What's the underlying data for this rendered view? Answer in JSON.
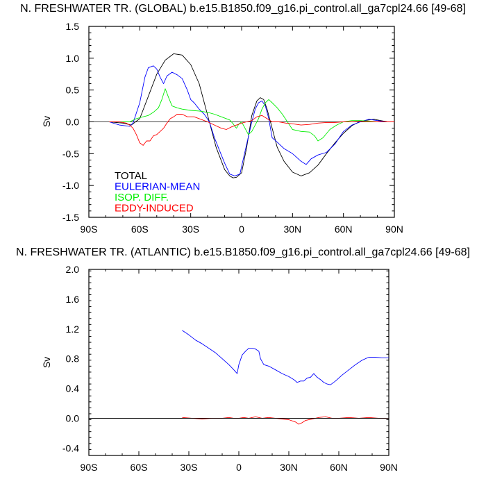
{
  "chart_data": [
    {
      "type": "line",
      "title": "N. FRESHWATER TR. (GLOBAL) b.e15.B1850.f09_g16.pi_control.all_ga7cpl24.66 [49-68]",
      "xlabel": "",
      "ylabel": "Sv",
      "xlim": [
        -90,
        90
      ],
      "ylim": [
        -1.5,
        1.5
      ],
      "xticks": [
        -90,
        -60,
        -30,
        0,
        30,
        60,
        90
      ],
      "xtick_labels": [
        "90S",
        "60S",
        "30S",
        "0",
        "30N",
        "60N",
        "90N"
      ],
      "yticks": [
        -1.5,
        -1.0,
        -0.5,
        0.0,
        0.5,
        1.0,
        1.5
      ],
      "ytick_labels": [
        "-1.5",
        "-1.0",
        "-0.5",
        "0.0",
        "0.5",
        "1.0",
        "1.5"
      ],
      "zero_line": true,
      "grid": false,
      "legend_position": "lower-left",
      "series": [
        {
          "name": "TOTAL",
          "color": "#000000",
          "x": [
            -78,
            -70,
            -65,
            -60,
            -55,
            -50,
            -45,
            -40,
            -35,
            -30,
            -25,
            -20,
            -15,
            -10,
            -7,
            -5,
            -3,
            0,
            3,
            6,
            9,
            11,
            13,
            15,
            18,
            21,
            25,
            30,
            35,
            40,
            45,
            50,
            55,
            60,
            65,
            70,
            75,
            78,
            82,
            86,
            90
          ],
          "y": [
            0.0,
            -0.02,
            -0.05,
            0.05,
            0.4,
            0.75,
            0.97,
            1.07,
            1.05,
            0.9,
            0.6,
            0.1,
            -0.4,
            -0.75,
            -0.85,
            -0.88,
            -0.87,
            -0.8,
            -0.4,
            0.1,
            0.33,
            0.38,
            0.35,
            0.2,
            -0.1,
            -0.4,
            -0.62,
            -0.79,
            -0.85,
            -0.8,
            -0.68,
            -0.5,
            -0.33,
            -0.18,
            -0.06,
            0.01,
            0.03,
            0.04,
            0.02,
            0.0,
            0.0
          ]
        },
        {
          "name": "EULERIAN-MEAN",
          "color": "#0000ff",
          "x": [
            -78,
            -72,
            -66,
            -64,
            -60,
            -57,
            -55,
            -52,
            -50,
            -48,
            -46,
            -44,
            -41,
            -38,
            -35,
            -32,
            -30,
            -28,
            -25,
            -22,
            -19,
            -16,
            -13,
            -10,
            -7,
            -4,
            -1,
            0,
            3,
            6,
            8,
            10,
            12,
            14,
            16,
            18,
            21,
            25,
            30,
            35,
            38,
            41,
            45,
            50,
            55,
            60,
            65,
            70,
            75,
            80,
            85,
            90
          ],
          "y": [
            0.0,
            -0.05,
            -0.07,
            -0.02,
            0.3,
            0.7,
            0.85,
            0.88,
            0.83,
            0.7,
            0.6,
            0.72,
            0.78,
            0.74,
            0.68,
            0.5,
            0.35,
            0.3,
            0.2,
            0.12,
            0.0,
            -0.25,
            -0.45,
            -0.65,
            -0.82,
            -0.85,
            -0.82,
            -0.7,
            -0.35,
            0.0,
            0.2,
            0.3,
            0.33,
            0.25,
            0.05,
            -0.25,
            -0.32,
            -0.42,
            -0.5,
            -0.62,
            -0.67,
            -0.58,
            -0.52,
            -0.48,
            -0.35,
            -0.15,
            -0.05,
            0.0,
            0.04,
            0.02,
            0.0,
            0.0
          ]
        },
        {
          "name": "ISOP. DIFF.",
          "color": "#00ee00",
          "x": [
            -78,
            -70,
            -66,
            -62,
            -58,
            -55,
            -52,
            -49,
            -47,
            -45,
            -43,
            -41,
            -38,
            -35,
            -30,
            -25,
            -20,
            -16,
            -12,
            -9,
            -7,
            -5,
            -4,
            -3,
            -2,
            -1,
            0,
            2,
            4,
            6,
            8,
            10,
            12,
            14,
            16,
            18,
            21,
            24,
            27,
            30,
            35,
            40,
            43,
            45,
            48,
            52,
            56,
            60,
            65,
            70,
            75,
            80,
            85,
            90
          ],
          "y": [
            0.0,
            0.0,
            0.0,
            0.05,
            0.08,
            0.1,
            0.15,
            0.22,
            0.35,
            0.52,
            0.38,
            0.25,
            0.22,
            0.2,
            0.18,
            0.17,
            0.15,
            0.12,
            0.08,
            0.05,
            0.03,
            -0.03,
            -0.07,
            -0.1,
            -0.05,
            -0.02,
            0.0,
            -0.1,
            -0.2,
            -0.15,
            -0.05,
            0.05,
            0.2,
            0.3,
            0.35,
            0.3,
            0.22,
            0.12,
            0.0,
            -0.12,
            -0.15,
            -0.16,
            -0.22,
            -0.3,
            -0.25,
            -0.12,
            -0.05,
            0.0,
            0.02,
            0.02,
            0.01,
            0.0,
            0.0,
            0.0
          ]
        },
        {
          "name": "EDDY-INDUCED",
          "color": "#ff0000",
          "x": [
            -78,
            -72,
            -68,
            -66,
            -64,
            -62,
            -60,
            -58,
            -56,
            -54,
            -52,
            -50,
            -48,
            -46,
            -44,
            -42,
            -40,
            -38,
            -35,
            -32,
            -28,
            -25,
            -20,
            -16,
            -12,
            -9,
            -6,
            -3,
            0,
            3,
            6,
            9,
            12,
            15,
            18,
            22,
            26,
            30,
            35,
            40,
            45,
            50,
            55,
            60,
            65,
            70,
            75,
            80,
            85,
            90
          ],
          "y": [
            0.0,
            0.0,
            -0.02,
            -0.05,
            -0.1,
            -0.2,
            -0.33,
            -0.37,
            -0.3,
            -0.3,
            -0.22,
            -0.2,
            -0.15,
            -0.1,
            -0.02,
            0.05,
            0.08,
            0.12,
            0.12,
            0.08,
            0.08,
            0.05,
            0.0,
            -0.05,
            -0.1,
            -0.12,
            -0.08,
            -0.05,
            -0.02,
            0.0,
            0.02,
            0.08,
            0.1,
            0.05,
            0.0,
            0.0,
            -0.02,
            -0.03,
            -0.05,
            -0.04,
            -0.02,
            -0.01,
            -0.01,
            0.0,
            0.0,
            0.01,
            0.0,
            0.0,
            0.0,
            0.0
          ]
        }
      ]
    },
    {
      "type": "line",
      "title": "N. FRESHWATER TR. (ATLANTIC) b.e15.B1850.f09_g16.pi_control.all_ga7cpl24.66 [49-68]",
      "xlabel": "",
      "ylabel": "Sv",
      "xlim": [
        -90,
        90
      ],
      "ylim": [
        -0.5,
        2.0
      ],
      "xticks": [
        -90,
        -60,
        -30,
        0,
        30,
        60,
        90
      ],
      "xtick_labels": [
        "90S",
        "60S",
        "30S",
        "0",
        "30N",
        "60N",
        "90N"
      ],
      "yticks": [
        -0.4,
        0.0,
        0.4,
        0.8,
        1.2,
        1.6,
        2.0
      ],
      "ytick_labels": [
        "-0.4",
        "0.0",
        "0.4",
        "0.8",
        "1.2",
        "1.6",
        "2.0"
      ],
      "zero_line": true,
      "grid": false,
      "series": [
        {
          "color": "#0000ff",
          "x": [
            -34,
            -30,
            -26,
            -22,
            -18,
            -14,
            -10,
            -6,
            -3,
            -1,
            0,
            2,
            4,
            6,
            8,
            10,
            12,
            13,
            15,
            18,
            22,
            26,
            30,
            33,
            35,
            37,
            39,
            41,
            43,
            45,
            47,
            49,
            51,
            53,
            55,
            58,
            62,
            66,
            70,
            74,
            78,
            82,
            86,
            90
          ],
          "y": [
            1.18,
            1.12,
            1.05,
            1.0,
            0.94,
            0.88,
            0.8,
            0.72,
            0.65,
            0.6,
            0.72,
            0.85,
            0.9,
            0.94,
            0.94,
            0.93,
            0.9,
            0.8,
            0.72,
            0.7,
            0.65,
            0.6,
            0.56,
            0.52,
            0.48,
            0.5,
            0.5,
            0.54,
            0.55,
            0.6,
            0.55,
            0.52,
            0.48,
            0.46,
            0.45,
            0.5,
            0.58,
            0.65,
            0.72,
            0.78,
            0.82,
            0.82,
            0.81,
            0.81
          ]
        },
        {
          "color": "#ff0000",
          "x": [
            -34,
            -28,
            -22,
            -16,
            -10,
            -6,
            -3,
            0,
            3,
            6,
            10,
            14,
            18,
            22,
            26,
            30,
            34,
            36,
            38,
            40,
            44,
            48,
            52,
            56,
            60,
            66,
            72,
            78,
            84,
            90
          ],
          "y": [
            0.01,
            0.0,
            -0.01,
            0.0,
            0.0,
            0.01,
            0.0,
            0.0,
            0.01,
            0.0,
            0.02,
            0.0,
            0.01,
            0.0,
            -0.01,
            -0.02,
            -0.05,
            -0.08,
            -0.06,
            -0.03,
            -0.01,
            0.01,
            0.02,
            0.0,
            0.0,
            0.01,
            0.0,
            0.01,
            0.0,
            0.0
          ]
        },
        {
          "color": "#000000",
          "x": [
            -90,
            90
          ],
          "y": [
            0.0,
            0.0
          ]
        }
      ]
    }
  ]
}
